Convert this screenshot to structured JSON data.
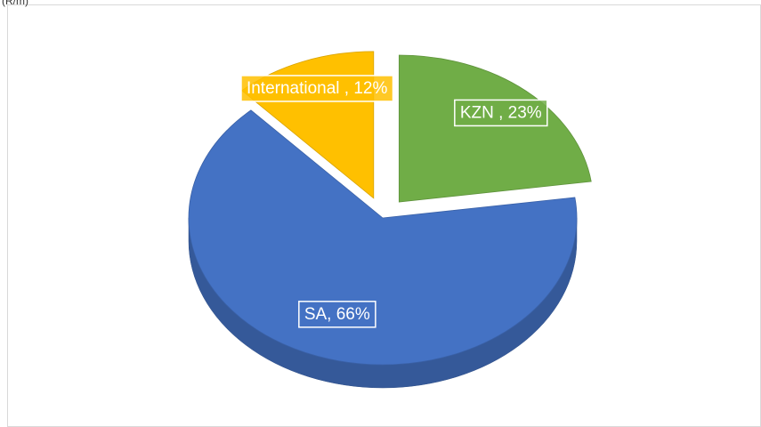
{
  "chart_data": {
    "type": "pie3d",
    "title": "(R/m)",
    "values": [
      23,
      66,
      12
    ],
    "value_labels": [
      "KZN , 23%",
      "SA, 66%",
      "International , 12%"
    ],
    "colors": [
      "#70ad47",
      "#4472c4",
      "#ffc000"
    ]
  }
}
